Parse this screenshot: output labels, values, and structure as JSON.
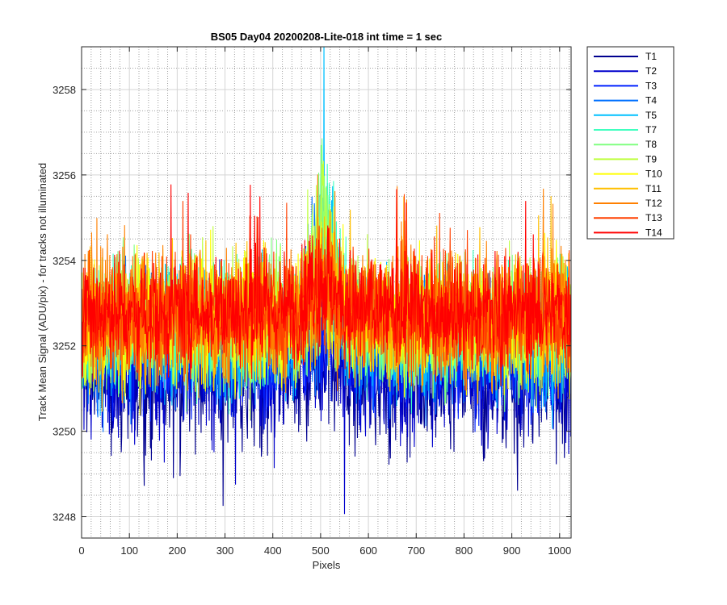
{
  "chart_data": {
    "type": "line",
    "title": "BS05 Day04 20200208-Lite-018 int time = 1 sec",
    "xlabel": "Pixels",
    "ylabel": "Track Mean Signal (ADU/pix) - for tracks not illuminated",
    "xlim": [
      0,
      1024
    ],
    "ylim": [
      3247.5,
      3259
    ],
    "xticks": [
      0,
      100,
      200,
      300,
      400,
      500,
      600,
      700,
      800,
      900,
      1000
    ],
    "yticks": [
      3248,
      3250,
      3252,
      3254,
      3256,
      3258
    ],
    "grid": true,
    "minor_grid": true,
    "legend_position": "outside-top-right",
    "x": "pixel index 1..1024",
    "series": [
      {
        "name": "T1",
        "color": "#00008f",
        "mean": 3251.3,
        "noise": 1.1
      },
      {
        "name": "T2",
        "color": "#0000cc",
        "mean": 3251.6,
        "noise": 1.1
      },
      {
        "name": "T3",
        "color": "#0020ff",
        "mean": 3251.9,
        "noise": 1.0
      },
      {
        "name": "T4",
        "color": "#0070ff",
        "mean": 3252.1,
        "noise": 1.0
      },
      {
        "name": "T5",
        "color": "#00c0ff",
        "mean": 3252.3,
        "noise": 1.0
      },
      {
        "name": "T7",
        "color": "#40ffbf",
        "mean": 3252.4,
        "noise": 1.0
      },
      {
        "name": "T8",
        "color": "#80ff80",
        "mean": 3252.5,
        "noise": 1.0
      },
      {
        "name": "T9",
        "color": "#bfff40",
        "mean": 3252.6,
        "noise": 1.0
      },
      {
        "name": "T10",
        "color": "#ffff00",
        "mean": 3252.6,
        "noise": 1.0
      },
      {
        "name": "T11",
        "color": "#ffbf00",
        "mean": 3252.7,
        "noise": 1.0
      },
      {
        "name": "T12",
        "color": "#ff8000",
        "mean": 3252.7,
        "noise": 1.0
      },
      {
        "name": "T13",
        "color": "#ff4000",
        "mean": 3252.8,
        "noise": 0.9
      },
      {
        "name": "T14",
        "color": "#ff0000",
        "mean": 3252.8,
        "noise": 0.9
      }
    ]
  }
}
